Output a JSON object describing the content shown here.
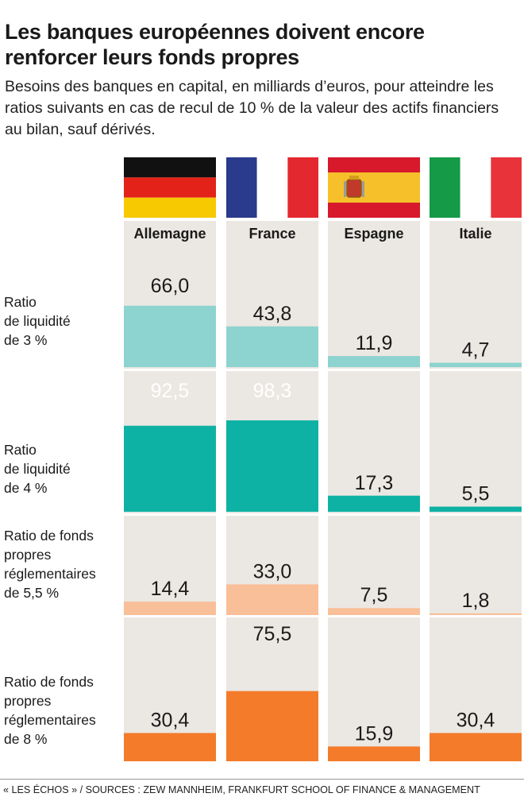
{
  "title": "Les banques européennes doivent encore renforcer leurs fonds propres",
  "subtitle": "Besoins des banques en capital, en milliards d’euros, pour atteindre les ratios suivants en cas de recul de 10 % de la valeur des actifs financiers au bilan, sauf dérivés.",
  "source": "« LES ÉCHOS » / SOURCES : ZEW MANNHEIM, FRANKFURT SCHOOL OF FINANCE & MANAGEMENT",
  "colors": {
    "column_bg": "#ebe7e2",
    "row_separator": "#ffffff",
    "ratio_3": "#8dd3cf",
    "ratio_4": "#0eb2a5",
    "ratio_5_5": "#f8bf98",
    "ratio_8": "#f47b2a"
  },
  "chart_data": {
    "type": "bar",
    "categories": [
      "Allemagne",
      "France",
      "Espagne",
      "Italie"
    ],
    "series": [
      {
        "name": "Ratio de liquidité de 3 %",
        "values": [
          66.0,
          43.8,
          11.9,
          4.7
        ],
        "labels": [
          "66,0",
          "43,8",
          "11,9",
          "4,7"
        ]
      },
      {
        "name": "Ratio de liquidité de 4 %",
        "values": [
          92.5,
          98.3,
          17.3,
          5.5
        ],
        "labels": [
          "92,5",
          "98,3",
          "17,3",
          "5,5"
        ]
      },
      {
        "name": "Ratio de fonds propres réglementaires de 5,5 %",
        "values": [
          14.4,
          33.0,
          7.5,
          1.8
        ],
        "labels": [
          "14,4",
          "33,0",
          "7,5",
          "1,8"
        ]
      },
      {
        "name": "Ratio de fonds propres réglementaires de 8 %",
        "values": [
          30.4,
          75.5,
          15.9,
          30.4
        ],
        "labels": [
          "30,4",
          "75,5",
          "15,9",
          "30,4"
        ]
      }
    ],
    "row_labels": [
      [
        "Ratio",
        "de liquidité",
        "de 3 %"
      ],
      [
        "Ratio",
        "de liquidité",
        "de 4 %"
      ],
      [
        "Ratio de fonds",
        "propres",
        "réglementaires",
        "de 5,5 %"
      ],
      [
        "Ratio de fonds",
        "propres",
        "réglementaires",
        "de 8 %"
      ]
    ],
    "flags": [
      "germany-flag",
      "france-flag",
      "spain-flag",
      "italy-flag"
    ],
    "ylim": [
      0,
      100
    ],
    "grid": false,
    "legend": "none"
  }
}
